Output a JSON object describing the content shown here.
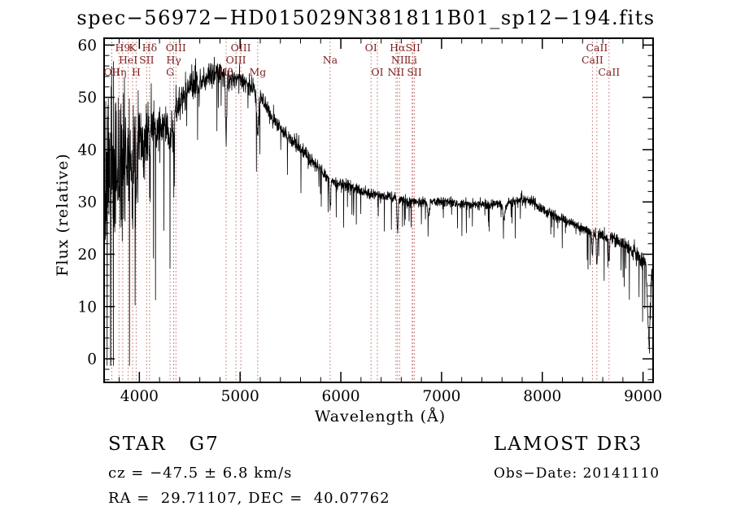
{
  "title": "spec−56972−HD015029N381811B01_sp12−194.fits",
  "chart_data": {
    "type": "line",
    "title": "spec−56972−HD015029N381811B01_sp12−194.fits",
    "xlabel": "Wavelength (Å)",
    "ylabel": "Flux (relative)",
    "xlim": [
      3650,
      9100
    ],
    "ylim": [
      0,
      60
    ],
    "xticks": [
      4000,
      5000,
      6000,
      7000,
      8000,
      9000
    ],
    "yticks": [
      0,
      10,
      20,
      30,
      40,
      50,
      60
    ],
    "x_minor_step": 200,
    "y_minor_step": 2,
    "grid": false,
    "legend": "none",
    "line_color": "#000000",
    "marker_line_color": "#c2706a",
    "marker_label_color": "#7c1f1f",
    "spectral_lines": [
      {
        "label": "H9",
        "wavelength": 3835,
        "row": 0
      },
      {
        "label": "K",
        "wavelength": 3933,
        "row": 0
      },
      {
        "label": "Hδ",
        "wavelength": 4101,
        "row": 0
      },
      {
        "label": "OIII",
        "wavelength": 4363,
        "row": 0
      },
      {
        "label": "OIII",
        "wavelength": 5007,
        "row": 0
      },
      {
        "label": "OI",
        "wavelength": 6300,
        "row": 0
      },
      {
        "label": "Hα",
        "wavelength": 6563,
        "row": 0
      },
      {
        "label": "SII",
        "wavelength": 6716,
        "row": 0
      },
      {
        "label": "CaII",
        "wavelength": 8542,
        "row": 0
      },
      {
        "label": "HeI",
        "wavelength": 3889,
        "row": 1
      },
      {
        "label": "SII",
        "wavelength": 4072,
        "row": 1
      },
      {
        "label": "Hγ",
        "wavelength": 4340,
        "row": 1
      },
      {
        "label": "OIII",
        "wavelength": 4959,
        "row": 1
      },
      {
        "label": "Na",
        "wavelength": 5894,
        "row": 1
      },
      {
        "label": "NII",
        "wavelength": 6583,
        "row": 1
      },
      {
        "label": "Li",
        "wavelength": 6708,
        "row": 1
      },
      {
        "label": "CaII",
        "wavelength": 8498,
        "row": 1
      },
      {
        "label": "OII",
        "wavelength": 3727,
        "row": 2
      },
      {
        "label": "Hη",
        "wavelength": 3798,
        "row": 2
      },
      {
        "label": "H",
        "wavelength": 3968,
        "row": 2
      },
      {
        "label": "G",
        "wavelength": 4305,
        "row": 2
      },
      {
        "label": "Hβ",
        "wavelength": 4861,
        "row": 2
      },
      {
        "label": "Mg",
        "wavelength": 5175,
        "row": 2
      },
      {
        "label": "OI",
        "wavelength": 6363,
        "row": 2
      },
      {
        "label": "NII",
        "wavelength": 6548,
        "row": 2
      },
      {
        "label": "SII",
        "wavelength": 6731,
        "row": 2
      },
      {
        "label": "CaII",
        "wavelength": 8662,
        "row": 2
      }
    ],
    "continuum": [
      [
        3650,
        30
      ],
      [
        3700,
        35
      ],
      [
        3760,
        38
      ],
      [
        3820,
        36
      ],
      [
        3900,
        40
      ],
      [
        4000,
        42
      ],
      [
        4100,
        43
      ],
      [
        4200,
        44
      ],
      [
        4300,
        46
      ],
      [
        4400,
        49
      ],
      [
        4500,
        52
      ],
      [
        4600,
        53
      ],
      [
        4700,
        54
      ],
      [
        4800,
        55
      ],
      [
        4900,
        53
      ],
      [
        5000,
        54
      ],
      [
        5100,
        52
      ],
      [
        5200,
        50
      ],
      [
        5300,
        47
      ],
      [
        5400,
        44
      ],
      [
        5500,
        42
      ],
      [
        5600,
        40
      ],
      [
        5700,
        38
      ],
      [
        5800,
        36
      ],
      [
        5900,
        34
      ],
      [
        6000,
        33.5
      ],
      [
        6100,
        33
      ],
      [
        6200,
        32
      ],
      [
        6300,
        31.5
      ],
      [
        6400,
        31
      ],
      [
        6500,
        31
      ],
      [
        6600,
        30.5
      ],
      [
        6700,
        30
      ],
      [
        6900,
        30
      ],
      [
        7100,
        30
      ],
      [
        7300,
        29.5
      ],
      [
        7500,
        29.5
      ],
      [
        7700,
        30
      ],
      [
        7800,
        30.5
      ],
      [
        7900,
        30
      ],
      [
        8000,
        28.5
      ],
      [
        8100,
        27.5
      ],
      [
        8200,
        26.5
      ],
      [
        8300,
        26
      ],
      [
        8400,
        25
      ],
      [
        8500,
        24
      ],
      [
        8600,
        23.5
      ],
      [
        8700,
        23
      ],
      [
        8800,
        22
      ],
      [
        8900,
        20.5
      ],
      [
        9000,
        19
      ],
      [
        9030,
        18
      ],
      [
        9060,
        2
      ],
      [
        9085,
        17
      ],
      [
        9100,
        17
      ]
    ],
    "absorption_features": [
      [
        3933,
        12,
        8
      ],
      [
        3968,
        10,
        8
      ],
      [
        4101,
        8,
        6
      ],
      [
        4305,
        6,
        10
      ],
      [
        4340,
        8,
        6
      ],
      [
        4861,
        12,
        6
      ],
      [
        5175,
        7,
        10
      ],
      [
        5894,
        5,
        6
      ],
      [
        6563,
        6,
        6
      ],
      [
        6870,
        2.5,
        10
      ],
      [
        7620,
        3,
        12
      ],
      [
        8498,
        4,
        5
      ],
      [
        8542,
        6,
        5
      ],
      [
        8662,
        5,
        5
      ]
    ],
    "noise": {
      "seed": 7,
      "amplitude": [
        [
          3650,
          26
        ],
        [
          3700,
          24
        ],
        [
          3750,
          20
        ],
        [
          3800,
          16
        ],
        [
          3900,
          12
        ],
        [
          4000,
          9
        ],
        [
          4100,
          7
        ],
        [
          4200,
          5
        ],
        [
          4400,
          3.5
        ],
        [
          4700,
          2.6
        ],
        [
          5000,
          2.2
        ],
        [
          5500,
          1.6
        ],
        [
          6000,
          1.3
        ],
        [
          6500,
          1.1
        ],
        [
          7000,
          1.0
        ],
        [
          7500,
          1.0
        ],
        [
          8000,
          1.1
        ],
        [
          8500,
          1.3
        ],
        [
          8800,
          1.6
        ],
        [
          9000,
          2.2
        ],
        [
          9100,
          3
        ]
      ]
    }
  },
  "footer": {
    "left": {
      "class_line": "STAR   G7",
      "cz_line": "cz = −47.5 ± 6.8 km/s",
      "radec_line": "RA =  29.71107, DEC =  40.07762"
    },
    "right": {
      "survey_line": "LAMOST DR3",
      "obsdate_line": "Obs−Date: 20141110"
    }
  }
}
